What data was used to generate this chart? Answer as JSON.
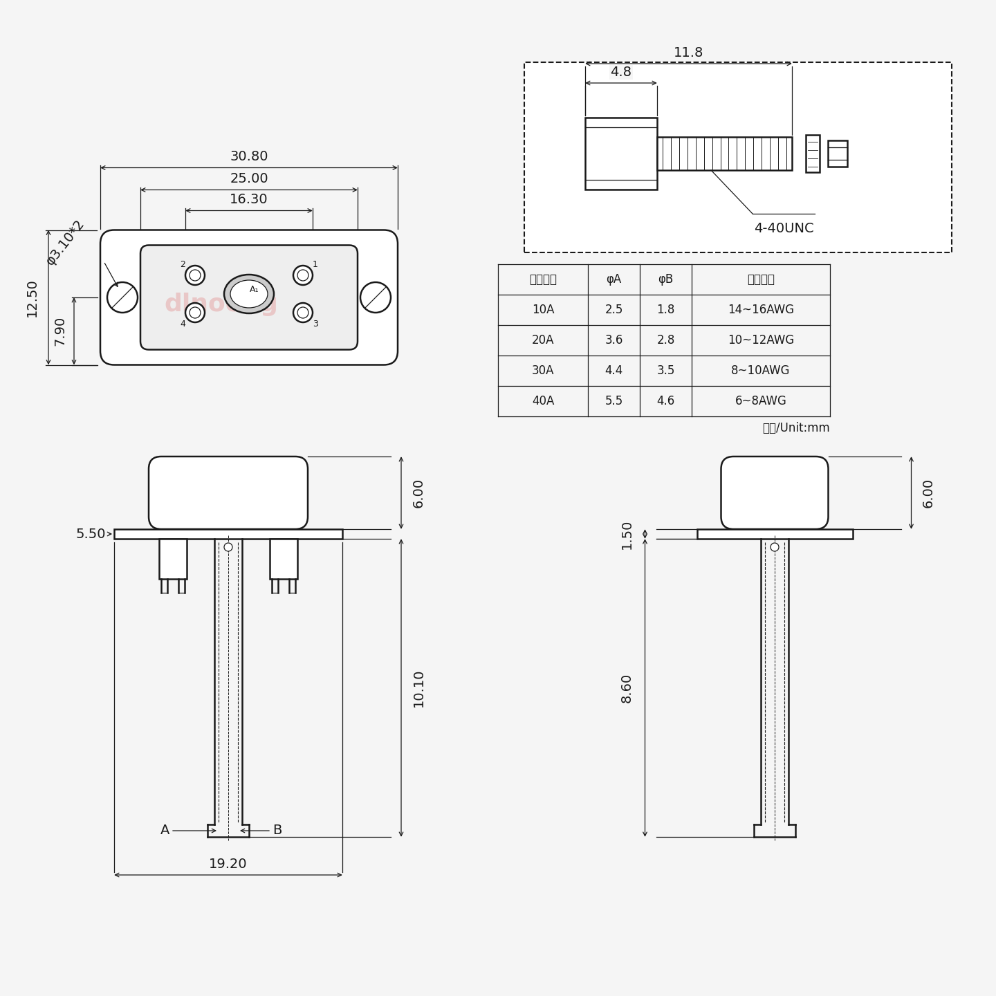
{
  "bg_color": "#f5f5f5",
  "line_color": "#1a1a1a",
  "table_headers": [
    "额定电流",
    "φA",
    "φB",
    "线材规格"
  ],
  "table_rows": [
    [
      "10A",
      "2.5",
      "1.8",
      "14~16AWG"
    ],
    [
      "20A",
      "3.6",
      "2.8",
      "10~12AWG"
    ],
    [
      "30A",
      "4.4",
      "3.5",
      "8~10AWG"
    ],
    [
      "40A",
      "5.5",
      "4.6",
      "6~8AWG"
    ]
  ],
  "unit_text": "单位/Unit:mm",
  "screw_label": "4-40UNC",
  "dim_30_80": "30.80",
  "dim_25_00": "25.00",
  "dim_16_30": "16.30",
  "dim_12_50": "12.50",
  "dim_7_90": "7.90",
  "dim_phi": "φ3.10*2",
  "dim_11_8": "11.8",
  "dim_4_8": "4.8",
  "dim_6_00": "6.00",
  "dim_5_50": "5.50",
  "dim_10_10": "10.10",
  "dim_19_20": "19.20",
  "dim_A": "A",
  "dim_B": "B",
  "dim_1_50": "1.50",
  "dim_8_60": "8.60"
}
